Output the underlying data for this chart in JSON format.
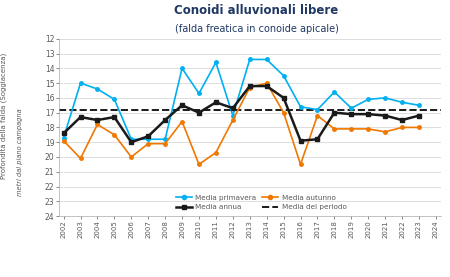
{
  "title": "Conoidi alluvionali libere",
  "subtitle": "(falda freatica in conoide apicale)",
  "ylabel_main": "Profondità della falda (Soggiacenza)",
  "ylabel_sub": "metri dal piano campagna",
  "years": [
    2002,
    2003,
    2004,
    2005,
    2006,
    2007,
    2008,
    2009,
    2010,
    2011,
    2012,
    2013,
    2014,
    2015,
    2016,
    2017,
    2018,
    2019,
    2020,
    2021,
    2022,
    2023
  ],
  "xtick_years": [
    2002,
    2003,
    2004,
    2005,
    2006,
    2007,
    2008,
    2009,
    2010,
    2011,
    2012,
    2013,
    2014,
    2015,
    2016,
    2017,
    2018,
    2019,
    2020,
    2021,
    2022,
    2023,
    2024
  ],
  "media_primavera": [
    18.7,
    15.0,
    15.4,
    16.1,
    18.8,
    18.8,
    18.8,
    14.0,
    15.7,
    13.6,
    17.2,
    13.4,
    13.4,
    14.5,
    16.6,
    16.8,
    15.6,
    16.7,
    16.1,
    16.0,
    16.3,
    16.5
  ],
  "media_autunno": [
    18.9,
    20.1,
    17.8,
    18.5,
    20.0,
    19.1,
    19.1,
    17.6,
    20.5,
    19.7,
    17.5,
    15.3,
    15.0,
    17.0,
    20.5,
    17.2,
    18.1,
    18.1,
    18.1,
    18.3,
    18.0,
    18.0
  ],
  "media_annua": [
    18.4,
    17.3,
    17.5,
    17.3,
    19.0,
    18.6,
    17.5,
    16.5,
    17.0,
    16.3,
    16.7,
    15.2,
    15.2,
    16.0,
    18.9,
    18.8,
    17.0,
    17.1,
    17.1,
    17.2,
    17.5,
    17.2
  ],
  "media_periodo": 16.85,
  "ylim": [
    12,
    24
  ],
  "yticks": [
    12,
    13,
    14,
    15,
    16,
    17,
    18,
    19,
    20,
    21,
    22,
    23,
    24
  ],
  "color_primavera": "#00b0f0",
  "color_autunno": "#f07800",
  "color_annua": "#1a1a1a",
  "color_periodo": "#1a1a1a",
  "title_color": "#1f3864",
  "axis_label_color": "#595959",
  "tick_color": "#595959",
  "grid_color": "#d0d0d0",
  "bg_color": "#ffffff"
}
